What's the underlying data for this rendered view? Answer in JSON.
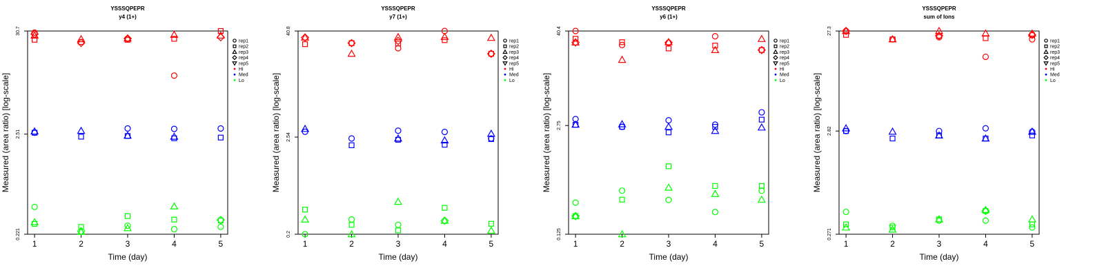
{
  "colors": {
    "Hi": "#ff0000",
    "Med": "#0000ff",
    "Lo": "#00ff00",
    "axis": "#000000"
  },
  "legend": {
    "shapes": [
      {
        "label": "rep1",
        "shape": "circle"
      },
      {
        "label": "rep2",
        "shape": "square"
      },
      {
        "label": "rep3",
        "shape": "triangle-up"
      },
      {
        "label": "rep4",
        "shape": "diamond"
      },
      {
        "label": "rep5",
        "shape": "triangle-down"
      }
    ],
    "groups": [
      {
        "label": "Hi",
        "color": "#ff0000"
      },
      {
        "label": "Med",
        "color": "#0000ff"
      },
      {
        "label": "Lo",
        "color": "#00ff00"
      }
    ]
  },
  "chart_data": [
    {
      "type": "scatter",
      "title": "YSSSQPEPR",
      "subtitle": "y4 (1+)",
      "xlabel": "Time (day)",
      "ylabel": "Measured (area ratio) [log-scale]",
      "x_ticks": [
        "1",
        "2",
        "3",
        "4",
        "5"
      ],
      "y_ticks": [
        "0.221",
        "2.51",
        "30.7"
      ],
      "y_scale": "log",
      "ylim": [
        0.221,
        30.7
      ],
      "xlim": [
        0.85,
        5.15
      ],
      "grid": false,
      "legend_position": "right",
      "series": [
        {
          "group": "Hi",
          "rep": "rep1",
          "x": [
            1,
            3,
            4
          ],
          "y": [
            29.5,
            25.5,
            10.4
          ]
        },
        {
          "group": "Hi",
          "rep": "rep2",
          "x": [
            1,
            2,
            3,
            4,
            5
          ],
          "y": [
            24.8,
            23.5,
            24.8,
            25.4,
            30.7
          ]
        },
        {
          "group": "Hi",
          "rep": "rep3",
          "x": [
            1,
            2,
            3,
            4,
            5
          ],
          "y": [
            27.5,
            25.2,
            25.6,
            28.0,
            27.5
          ]
        },
        {
          "group": "Hi",
          "rep": "rep4",
          "x": [
            1,
            2,
            3,
            5
          ],
          "y": [
            28.5,
            23.0,
            25.6,
            26.4
          ]
        },
        {
          "group": "Med",
          "rep": "rep1",
          "x": [
            1,
            3,
            4,
            5
          ],
          "y": [
            2.6,
            2.88,
            2.85,
            2.88
          ]
        },
        {
          "group": "Med",
          "rep": "rep2",
          "x": [
            1,
            2,
            3,
            4,
            5
          ],
          "y": [
            2.6,
            2.36,
            2.4,
            2.27,
            2.31
          ]
        },
        {
          "group": "Med",
          "rep": "rep3",
          "x": [
            1,
            2,
            3,
            4
          ],
          "y": [
            2.68,
            2.72,
            2.42,
            2.36
          ]
        },
        {
          "group": "Lo",
          "rep": "rep1",
          "x": [
            1,
            3,
            4,
            5
          ],
          "y": [
            0.429,
            0.272,
            0.25,
            0.264
          ]
        },
        {
          "group": "Lo",
          "rep": "rep2",
          "x": [
            1,
            2,
            3,
            4,
            5
          ],
          "y": [
            0.284,
            0.264,
            0.343,
            0.315,
            0.309
          ]
        },
        {
          "group": "Lo",
          "rep": "rep3",
          "x": [
            1,
            2,
            3,
            4
          ],
          "y": [
            0.296,
            0.234,
            0.256,
            0.434
          ]
        },
        {
          "group": "Lo",
          "rep": "rep4",
          "x": [
            2,
            5
          ],
          "y": [
            0.238,
            0.312
          ]
        }
      ]
    },
    {
      "type": "scatter",
      "title": "YSSSQPEPR",
      "subtitle": "y7 (1+)",
      "xlabel": "Time (day)",
      "ylabel": "Measured (area ratio) [log-scale]",
      "x_ticks": [
        "1",
        "2",
        "3",
        "4",
        "5"
      ],
      "y_ticks": [
        "0.2",
        "2.54",
        "40.8"
      ],
      "y_scale": "log",
      "ylim": [
        0.2,
        40.8
      ],
      "xlim": [
        0.85,
        5.15
      ],
      "grid": false,
      "legend_position": "right",
      "series": [
        {
          "group": "Hi",
          "rep": "rep1",
          "x": [
            3,
            4,
            5
          ],
          "y": [
            26.0,
            40.8,
            22.5
          ]
        },
        {
          "group": "Hi",
          "rep": "rep2",
          "x": [
            1,
            2,
            3,
            4,
            5
          ],
          "y": [
            28.9,
            29.7,
            29.4,
            32.1,
            22.5
          ]
        },
        {
          "group": "Hi",
          "rep": "rep3",
          "x": [
            1,
            2,
            3,
            4,
            5
          ],
          "y": [
            34.4,
            22.5,
            34.8,
            35.0,
            34.1
          ]
        },
        {
          "group": "Hi",
          "rep": "rep4",
          "x": [
            1,
            2,
            3,
            5
          ],
          "y": [
            34.4,
            29.7,
            31.5,
            22.5
          ]
        },
        {
          "group": "Med",
          "rep": "rep1",
          "x": [
            1,
            2,
            3,
            4,
            5
          ],
          "y": [
            2.92,
            2.45,
            3.0,
            2.91,
            2.45
          ]
        },
        {
          "group": "Med",
          "rep": "rep2",
          "x": [
            2,
            3,
            4,
            5
          ],
          "y": [
            2.05,
            2.37,
            2.08,
            2.41
          ]
        },
        {
          "group": "Med",
          "rep": "rep3",
          "x": [
            1,
            3,
            4,
            5
          ],
          "y": [
            3.15,
            2.45,
            2.33,
            2.77
          ]
        },
        {
          "group": "Lo",
          "rep": "rep1",
          "x": [
            1,
            2,
            3
          ],
          "y": [
            0.2,
            0.294,
            0.256
          ]
        },
        {
          "group": "Lo",
          "rep": "rep2",
          "x": [
            1,
            2,
            3,
            4,
            5
          ],
          "y": [
            0.381,
            0.256,
            0.221,
            0.399,
            0.263
          ]
        },
        {
          "group": "Lo",
          "rep": "rep3",
          "x": [
            1,
            2,
            3,
            4,
            5
          ],
          "y": [
            0.294,
            0.2,
            0.468,
            0.285,
            0.22
          ]
        },
        {
          "group": "Lo",
          "rep": "rep4",
          "x": [
            4
          ],
          "y": [
            0.285
          ]
        }
      ]
    },
    {
      "type": "scatter",
      "title": "YSSSQPEPR",
      "subtitle": "y6 (1+)",
      "xlabel": "Time (day)",
      "ylabel": "Measured (area ratio) [log-scale]",
      "x_ticks": [
        "1",
        "2",
        "3",
        "4",
        "5"
      ],
      "y_ticks": [
        "0.125",
        "2.75",
        "40.4"
      ],
      "y_scale": "log",
      "ylim": [
        0.125,
        40.4
      ],
      "xlim": [
        0.85,
        5.15
      ],
      "grid": false,
      "legend_position": "right",
      "series": [
        {
          "group": "Hi",
          "rep": "rep1",
          "x": [
            1,
            2,
            3,
            4
          ],
          "y": [
            40.4,
            27.1,
            29.0,
            34.8
          ]
        },
        {
          "group": "Hi",
          "rep": "rep2",
          "x": [
            1,
            2,
            3,
            4,
            5
          ],
          "y": [
            32.4,
            29.4,
            24.6,
            26.7,
            23.5
          ]
        },
        {
          "group": "Hi",
          "rep": "rep3",
          "x": [
            1,
            2,
            3,
            4,
            5
          ],
          "y": [
            29.2,
            17.8,
            29.4,
            23.5,
            32.2
          ]
        },
        {
          "group": "Hi",
          "rep": "rep4",
          "x": [
            1,
            3,
            5
          ],
          "y": [
            29.2,
            29.0,
            23.5
          ]
        },
        {
          "group": "Med",
          "rep": "rep1",
          "x": [
            1,
            2,
            3,
            4,
            5
          ],
          "y": [
            3.3,
            2.65,
            3.19,
            2.82,
            4.0
          ]
        },
        {
          "group": "Med",
          "rep": "rep2",
          "x": [
            1,
            2,
            3,
            4,
            5
          ],
          "y": [
            2.81,
            2.65,
            2.26,
            2.65,
            3.25
          ]
        },
        {
          "group": "Med",
          "rep": "rep3",
          "x": [
            1,
            2,
            3,
            4,
            5
          ],
          "y": [
            2.82,
            2.85,
            2.65,
            2.36,
            2.6
          ]
        },
        {
          "group": "Lo",
          "rep": "rep1",
          "x": [
            1,
            2,
            3,
            4,
            5
          ],
          "y": [
            0.307,
            0.431,
            0.331,
            0.235,
            0.431
          ]
        },
        {
          "group": "Lo",
          "rep": "rep2",
          "x": [
            1,
            2,
            3,
            4,
            5
          ],
          "y": [
            0.209,
            0.334,
            0.864,
            0.493,
            0.493
          ]
        },
        {
          "group": "Lo",
          "rep": "rep3",
          "x": [
            1,
            2,
            3,
            4,
            5
          ],
          "y": [
            0.209,
            0.125,
            0.47,
            0.393,
            0.334
          ]
        },
        {
          "group": "Lo",
          "rep": "rep4",
          "x": [
            1
          ],
          "y": [
            0.209
          ]
        }
      ]
    },
    {
      "type": "scatter",
      "title": "YSSSQPEPR",
      "subtitle": "sum of Ions",
      "xlabel": "Time (day)",
      "ylabel": "Measured (area ratio) [log-scale]",
      "x_ticks": [
        "1",
        "2",
        "3",
        "4",
        "5"
      ],
      "y_ticks": [
        "0.271",
        "2.82",
        "27.3"
      ],
      "y_scale": "log",
      "ylim": [
        0.271,
        27.3
      ],
      "xlim": [
        0.85,
        5.15
      ],
      "grid": false,
      "legend_position": "right",
      "series": [
        {
          "group": "Hi",
          "rep": "rep1",
          "x": [
            1,
            2,
            3,
            4,
            5
          ],
          "y": [
            27.3,
            22.6,
            23.7,
            15.2,
            22.6
          ]
        },
        {
          "group": "Hi",
          "rep": "rep2",
          "x": [
            1,
            2,
            3,
            4,
            5
          ],
          "y": [
            25.0,
            22.6,
            24.5,
            23.2,
            24.8
          ]
        },
        {
          "group": "Hi",
          "rep": "rep3",
          "x": [
            1,
            2,
            3,
            4,
            5
          ],
          "y": [
            27.3,
            22.6,
            27.3,
            25.8,
            25.8
          ]
        },
        {
          "group": "Hi",
          "rep": "rep4",
          "x": [
            1,
            3,
            5
          ],
          "y": [
            27.3,
            24.5,
            25.0
          ]
        },
        {
          "group": "Med",
          "rep": "rep1",
          "x": [
            1,
            3,
            4,
            5
          ],
          "y": [
            2.82,
            2.82,
            3.0,
            2.78
          ]
        },
        {
          "group": "Med",
          "rep": "rep2",
          "x": [
            1,
            2,
            3,
            4,
            5
          ],
          "y": [
            2.82,
            2.38,
            2.55,
            2.38,
            2.55
          ]
        },
        {
          "group": "Med",
          "rep": "rep3",
          "x": [
            1,
            2,
            3,
            4,
            5
          ],
          "y": [
            3.0,
            2.78,
            2.55,
            2.38,
            2.78
          ]
        },
        {
          "group": "Lo",
          "rep": "rep1",
          "x": [
            1,
            2,
            3,
            4,
            5
          ],
          "y": [
            0.45,
            0.328,
            0.369,
            0.369,
            0.316
          ]
        },
        {
          "group": "Lo",
          "rep": "rep2",
          "x": [
            1,
            2,
            3,
            4,
            5
          ],
          "y": [
            0.339,
            0.316,
            0.38,
            0.46,
            0.339
          ]
        },
        {
          "group": "Lo",
          "rep": "rep3",
          "x": [
            1,
            2,
            3,
            4,
            5
          ],
          "y": [
            0.316,
            0.301,
            0.38,
            0.47,
            0.38
          ]
        },
        {
          "group": "Lo",
          "rep": "rep4",
          "x": [
            4
          ],
          "y": [
            0.46
          ]
        }
      ]
    }
  ]
}
